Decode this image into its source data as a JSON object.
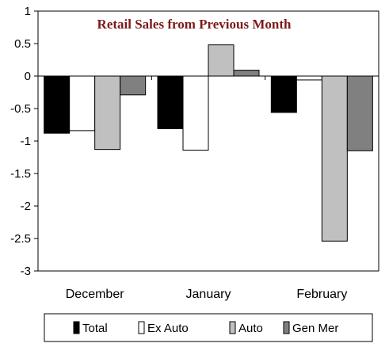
{
  "chart_data": {
    "type": "bar",
    "title": "Retail Sales from Previous Month",
    "categories": [
      "December",
      "January",
      "February"
    ],
    "ylim": [
      -3,
      1
    ],
    "yticks": [
      1,
      0.5,
      0,
      -0.5,
      -1,
      -1.5,
      -2,
      -2.5,
      -3
    ],
    "ytick_labels": [
      "1",
      "0.5",
      "0",
      "-0.5",
      "-1",
      "-1.5",
      "-2",
      "-2.5",
      "-3"
    ],
    "grid": false,
    "legend_position": "bottom",
    "series": [
      {
        "name": "Total",
        "color": "#000000",
        "values": [
          -0.88,
          -0.81,
          -0.56
        ]
      },
      {
        "name": "Ex Auto",
        "color": "#ffffff",
        "values": [
          -0.84,
          -1.14,
          -0.06
        ]
      },
      {
        "name": "Auto",
        "color": "#c0c0c0",
        "values": [
          -1.13,
          0.48,
          -2.54
        ]
      },
      {
        "name": "Gen Mer",
        "color": "#808080",
        "values": [
          -0.29,
          0.09,
          -1.15
        ]
      }
    ]
  }
}
